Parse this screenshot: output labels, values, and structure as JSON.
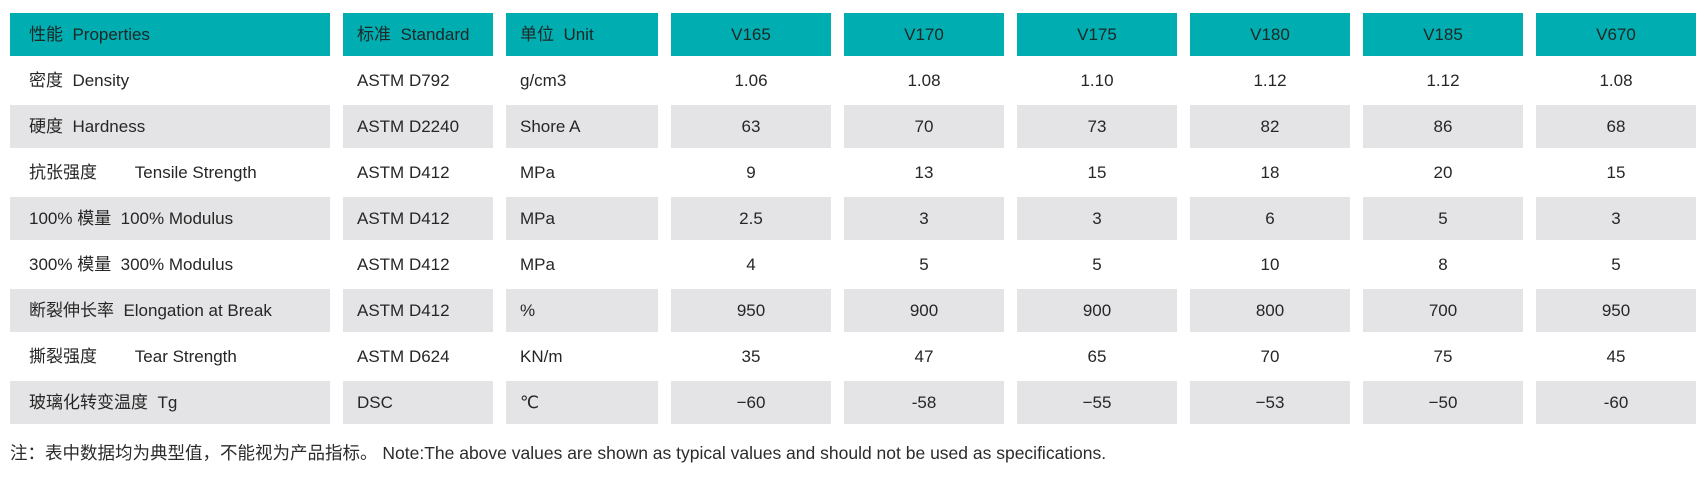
{
  "table": {
    "accent_color": "#00adb0",
    "stripe_color": "#e4e4e6",
    "columns": {
      "properties": "性能  Properties",
      "standard": "标准  Standard",
      "unit": "单位  Unit",
      "v165": "V165",
      "v170": "V170",
      "v175": "V175",
      "v180": "V180",
      "v185": "V185",
      "v670": "V670"
    },
    "rows": [
      {
        "property": "密度  Density",
        "standard": "ASTM D792",
        "unit": "g/cm3",
        "values": [
          "1.06",
          "1.08",
          "1.10",
          "1.12",
          "1.12",
          "1.08"
        ]
      },
      {
        "property": "硬度  Hardness",
        "standard": "ASTM D2240",
        "unit": "Shore A",
        "values": [
          "63",
          "70",
          "73",
          "82",
          "86",
          "68"
        ]
      },
      {
        "property": "抗张强度        Tensile Strength",
        "standard": "ASTM D412",
        "unit": "MPa",
        "values": [
          "9",
          "13",
          "15",
          "18",
          "20",
          "15"
        ]
      },
      {
        "property": "100% 模量  100% Modulus",
        "standard": "ASTM D412",
        "unit": "MPa",
        "values": [
          "2.5",
          "3",
          "3",
          "6",
          "5",
          "3"
        ]
      },
      {
        "property": "300% 模量  300% Modulus",
        "standard": "ASTM D412",
        "unit": "MPa",
        "values": [
          "4",
          "5",
          "5",
          "10",
          "8",
          "5"
        ]
      },
      {
        "property": "断裂伸长率  Elongation at Break",
        "standard": "ASTM D412",
        "unit": "%",
        "values": [
          "950",
          "900",
          "900",
          "800",
          "700",
          "950"
        ]
      },
      {
        "property": "撕裂强度        Tear Strength",
        "standard": "ASTM D624",
        "unit": "KN/m",
        "values": [
          "35",
          "47",
          "65",
          "70",
          "75",
          "45"
        ]
      },
      {
        "property": "玻璃化转变温度  Tg",
        "standard": "DSC",
        "unit": "℃",
        "values": [
          "−60",
          "-58",
          "−55",
          "−53",
          "−50",
          "-60"
        ]
      }
    ]
  },
  "footnote": "注：表中数据均为典型值，不能视为产品指标。 Note:The above values are shown as typical values and should not be used as specifications."
}
